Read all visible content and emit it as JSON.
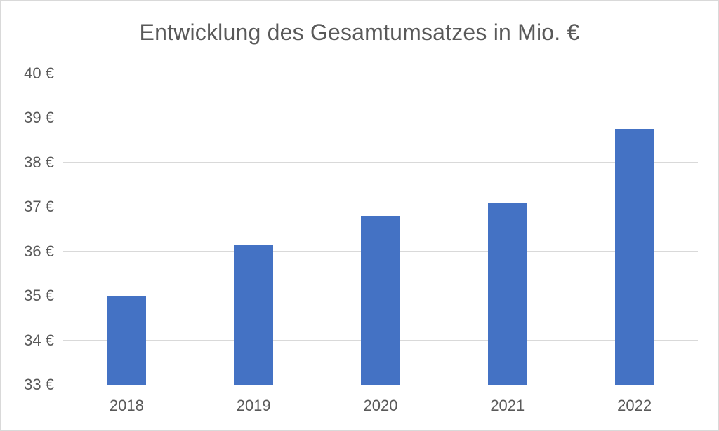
{
  "chart_data": {
    "type": "bar",
    "title": "Entwicklung des Gesamtumsatzes in Mio. €",
    "categories": [
      "2018",
      "2019",
      "2020",
      "2021",
      "2022"
    ],
    "values": [
      35.0,
      36.15,
      36.8,
      37.1,
      38.75
    ],
    "series_unit": "Mio. €",
    "ylim": [
      33,
      40
    ],
    "ytick_step": 1,
    "yticks": [
      "40 €",
      "39 €",
      "38 €",
      "37 €",
      "36 €",
      "35 €",
      "34 €",
      "33 €"
    ],
    "grid": true,
    "legend": false,
    "colors": {
      "bar": "#4472C4",
      "gridline": "#D9D9D9",
      "axis_line": "#BFBFBF",
      "text": "#595959",
      "background": "#FFFFFF",
      "border": "#D9D9D9"
    }
  }
}
